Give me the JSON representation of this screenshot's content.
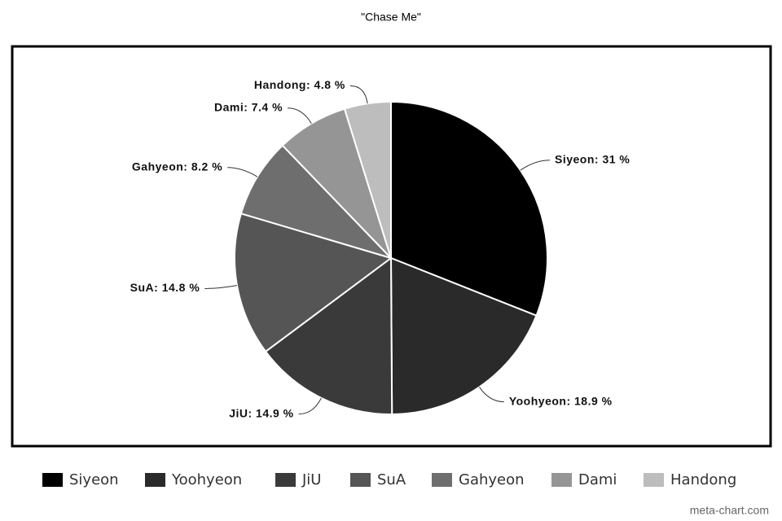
{
  "chart_data": {
    "type": "pie",
    "title": "\"Chase Me\"",
    "categories": [
      "Siyeon",
      "Yoohyeon",
      "JiU",
      "SuA",
      "Gahyeon",
      "Dami",
      "Handong"
    ],
    "values": [
      31,
      18.9,
      14.9,
      14.8,
      8.2,
      7.4,
      4.8
    ],
    "value_labels": [
      "Siyeon: 31 %",
      "Yoohyeon: 18.9 %",
      "JiU: 14.9 %",
      "SuA: 14.8 %",
      "Gahyeon: 8.2 %",
      "Dami: 7.4 %",
      "Handong: 4.8 %"
    ],
    "colors": [
      "#000000",
      "#2a2a2a",
      "#3a3a3a",
      "#555555",
      "#6e6e6e",
      "#959595",
      "#bdbdbd"
    ],
    "legend": "bottom"
  },
  "watermark": "meta-chart.com"
}
